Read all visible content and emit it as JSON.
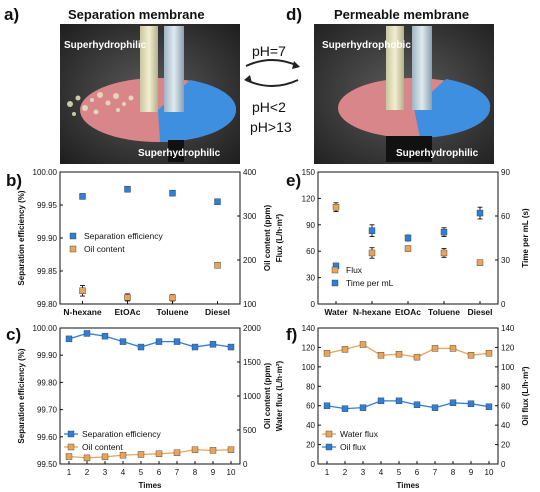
{
  "illustrations": {
    "a": {
      "letter": "a)",
      "title": "Separation membrane",
      "label_top": "Superhydrophilic",
      "label_bottom": "Superhydrophilic"
    },
    "d": {
      "letter": "d)",
      "title": "Permeable membrane",
      "label_top": "Superhydrophobic",
      "label_bottom": "Superhydrophilic"
    },
    "conditions": {
      "forward": "pH=7",
      "reverse_1": "pH<2",
      "reverse_2": "pH>13"
    }
  },
  "colors": {
    "blue": "#2f7fd6",
    "orange": "#e9a45a",
    "membrane_pink": "#d9868a",
    "membrane_blue": "#3e8fe0",
    "photo_bg": "#3a3a3a"
  },
  "chart_data": [
    {
      "panel": "b)",
      "type": "scatter",
      "categories": [
        "N-hexane",
        "EtOAc",
        "Toluene",
        "Diesel"
      ],
      "ylabel": "Separation efficiency (%)",
      "ylabel2": "Oil content (ppm)",
      "ylim": [
        99.8,
        100.0
      ],
      "yticks": [
        "99.80",
        "99.85",
        "99.90",
        "99.95",
        "100.00"
      ],
      "y2lim": [
        100,
        400
      ],
      "y2ticks": [
        "100",
        "200",
        "300",
        "400"
      ],
      "legend_position": "middle-left",
      "series": [
        {
          "name": "Separation efficiency",
          "axis": "left",
          "color": "#2f7fd6",
          "values": [
            99.963,
            99.974,
            99.968,
            99.955
          ],
          "errors": [
            0.004,
            0.004,
            0.004,
            0.004
          ]
        },
        {
          "name": "Oil content",
          "axis": "right",
          "color": "#e9a45a",
          "values": [
            130,
            115,
            114,
            188
          ],
          "errors": [
            12,
            8,
            7,
            6
          ]
        }
      ]
    },
    {
      "panel": "e)",
      "type": "scatter",
      "categories": [
        "Water",
        "N-hexane",
        "EtOAc",
        "Toluene",
        "Diesel"
      ],
      "ylabel": "Flux (L/h·m²)",
      "ylabel2": "Time per mL (s)",
      "ylim": [
        0,
        150
      ],
      "yticks": [
        "0",
        "30",
        "60",
        "90",
        "120",
        "150"
      ],
      "y2lim": [
        0,
        90
      ],
      "y2ticks": [
        "0",
        "30",
        "60",
        "90"
      ],
      "legend_position": "bottom-left",
      "series": [
        {
          "name": "Flux",
          "axis": "left",
          "color": "#e9a45a",
          "values": [
            110,
            58,
            63,
            58,
            47
          ],
          "errors": [
            5,
            6,
            3,
            5,
            2
          ]
        },
        {
          "name": "Time per mL",
          "axis": "right",
          "color": "#2f7fd6",
          "values": [
            26,
            50,
            45,
            49,
            62
          ],
          "errors": [
            1,
            4,
            2,
            3,
            4
          ]
        }
      ]
    },
    {
      "panel": "c)",
      "type": "line",
      "x": [
        1,
        2,
        3,
        4,
        5,
        6,
        7,
        8,
        9,
        10
      ],
      "xlabel": "Times",
      "ylabel": "Separation efficiency (%)",
      "ylabel2": "Oil content (ppm)",
      "ylim": [
        99.5,
        100.0
      ],
      "yticks": [
        "99.50",
        "99.60",
        "99.70",
        "99.80",
        "99.90",
        "100.00"
      ],
      "y2lim": [
        0,
        2000
      ],
      "y2ticks": [
        "0",
        "500",
        "1000",
        "1500",
        "2000"
      ],
      "legend_position": "bottom-left",
      "series": [
        {
          "name": "Separation efficiency",
          "axis": "left",
          "color": "#2f7fd6",
          "values": [
            99.96,
            99.98,
            99.97,
            99.95,
            99.93,
            99.95,
            99.95,
            99.93,
            99.94,
            99.93
          ]
        },
        {
          "name": "Oil content",
          "axis": "right",
          "color": "#e9a45a",
          "values": [
            110,
            90,
            105,
            130,
            140,
            150,
            165,
            210,
            200,
            210
          ]
        }
      ]
    },
    {
      "panel": "f)",
      "type": "line",
      "x": [
        1,
        2,
        3,
        4,
        5,
        6,
        7,
        8,
        9,
        10
      ],
      "xlabel": "Times",
      "ylabel": "Water flux (L/h·m²)",
      "ylabel2": "Oil flux (L/h·m²)",
      "ylim": [
        0,
        140
      ],
      "yticks": [
        "0",
        "20",
        "40",
        "60",
        "80",
        "100",
        "120",
        "140"
      ],
      "y2lim": [
        0,
        140
      ],
      "y2ticks": [
        "0",
        "20",
        "40",
        "60",
        "80",
        "100",
        "120",
        "140"
      ],
      "legend_position": "bottom-left",
      "series": [
        {
          "name": "Water flux",
          "axis": "left",
          "color": "#e9a45a",
          "values": [
            114,
            118,
            123,
            112,
            113,
            110,
            119,
            119,
            112,
            114
          ]
        },
        {
          "name": "Oil flux",
          "axis": "right",
          "color": "#2f7fd6",
          "values": [
            60,
            57,
            58,
            65,
            65,
            61,
            58,
            63,
            62,
            59
          ]
        }
      ]
    }
  ]
}
